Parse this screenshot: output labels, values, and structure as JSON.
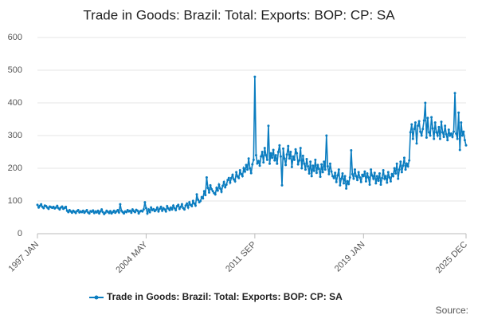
{
  "chart_data": {
    "type": "line",
    "title": "Trade in Goods: Brazil: Total: Exports: BOP: CP: SA",
    "source": "Source:",
    "categories": [
      "1997 JAN",
      null,
      null,
      null,
      null,
      null,
      null,
      null,
      null,
      null,
      null,
      null,
      null,
      null,
      null,
      null,
      null,
      null,
      null,
      null,
      null,
      null,
      null,
      null,
      null,
      null,
      null,
      null,
      null,
      null,
      null,
      null,
      null,
      null,
      null,
      null,
      null,
      null,
      null,
      null,
      null,
      null,
      null,
      null,
      null,
      null,
      null,
      null,
      null,
      null,
      null,
      null,
      null,
      null,
      null,
      null,
      null,
      null,
      null,
      null,
      null,
      null,
      null,
      null,
      null,
      null,
      null,
      null,
      null,
      null,
      null,
      null,
      null,
      null,
      null,
      null,
      null,
      null,
      null,
      null,
      null,
      null,
      null,
      null,
      null,
      null,
      null,
      null,
      "2004 MAY",
      null,
      null,
      null,
      null,
      null,
      null,
      null,
      null,
      null,
      null,
      null,
      null,
      null,
      null,
      null,
      null,
      null,
      null,
      null,
      null,
      null,
      null,
      null,
      null,
      null,
      null,
      null,
      null,
      null,
      null,
      null,
      null,
      null,
      null,
      null,
      null,
      null,
      null,
      null,
      null,
      null,
      null,
      null,
      null,
      null,
      null,
      null,
      null,
      null,
      null,
      null,
      null,
      null,
      null,
      null,
      null,
      null,
      null,
      null,
      null,
      null,
      null,
      null,
      null,
      null,
      null,
      null,
      null,
      null,
      null,
      null,
      null,
      null,
      null,
      null,
      null,
      null,
      null,
      null,
      null,
      null,
      null,
      null,
      null,
      null,
      null,
      null,
      "2011 SEP",
      null,
      null,
      null,
      null,
      null,
      null,
      null,
      null,
      null,
      null,
      null,
      null,
      null,
      null,
      null,
      null,
      null,
      null,
      null,
      null,
      null,
      null,
      null,
      null,
      null,
      null,
      null,
      null,
      null,
      null,
      null,
      null,
      null,
      null,
      null,
      null,
      null,
      null,
      null,
      null,
      null,
      null,
      null,
      null,
      null,
      null,
      null,
      null,
      null,
      null,
      null,
      null,
      null,
      null,
      null,
      null,
      null,
      null,
      null,
      null,
      null,
      null,
      null,
      null,
      null,
      null,
      null,
      null,
      null,
      null,
      null,
      null,
      null,
      null,
      null,
      null,
      null,
      null,
      null,
      null,
      null,
      null,
      null,
      null,
      null,
      null,
      null,
      "2019 JAN",
      null,
      null,
      null,
      null,
      null,
      null,
      null,
      null,
      null,
      null,
      null,
      null,
      null,
      null,
      null,
      null,
      null,
      null,
      null,
      null,
      null,
      null,
      null,
      null,
      null,
      null,
      null,
      null,
      null,
      null,
      null,
      null,
      null,
      null,
      null,
      null,
      null,
      null,
      null,
      null,
      null,
      null,
      null,
      null,
      null,
      null,
      null,
      null,
      null,
      null,
      null,
      null,
      null,
      null,
      null,
      null,
      null,
      null,
      null,
      null,
      null,
      null,
      null,
      null,
      null,
      null,
      null,
      null,
      null,
      null,
      null,
      null,
      null,
      null,
      null,
      null,
      null,
      null,
      null,
      null,
      null,
      null,
      "2025 DEC"
    ],
    "series": [
      {
        "name": "Trade in Goods: Brazil: Total: Exports: BOP: CP: SA",
        "color": "#0b7dc0",
        "values": [
          88,
          80,
          85,
          90,
          82,
          78,
          86,
          84,
          80,
          76,
          83,
          81,
          79,
          82,
          77,
          80,
          85,
          78,
          74,
          80,
          83,
          76,
          79,
          82,
          70,
          66,
          72,
          68,
          64,
          70,
          67,
          63,
          69,
          72,
          65,
          68,
          66,
          70,
          64,
          68,
          72,
          65,
          62,
          69,
          67,
          71,
          63,
          68,
          65,
          70,
          62,
          68,
          74,
          66,
          60,
          64,
          70,
          67,
          63,
          69,
          62,
          66,
          70,
          64,
          68,
          72,
          65,
          90,
          70,
          66,
          62,
          68,
          66,
          72,
          68,
          70,
          64,
          74,
          69,
          66,
          73,
          70,
          62,
          68,
          70,
          68,
          74,
          96,
          78,
          62,
          74,
          66,
          80,
          72,
          75,
          69,
          73,
          80,
          68,
          76,
          82,
          70,
          78,
          74,
          68,
          84,
          77,
          72,
          80,
          74,
          86,
          78,
          72,
          84,
          88,
          76,
          82,
          90,
          78,
          74,
          86,
          92,
          80,
          96,
          88,
          84,
          100,
          92,
          86,
          120,
          104,
          96,
          100,
          112,
          108,
          130,
          118,
          172,
          140,
          126,
          148,
          136,
          130,
          124,
          120,
          140,
          132,
          150,
          138,
          128,
          146,
          158,
          142,
          150,
          164,
          170,
          156,
          170,
          180,
          166,
          160,
          188,
          175,
          170,
          194,
          182,
          176,
          200,
          190,
          210,
          196,
          230,
          200,
          185,
          212,
          226,
          480,
          240,
          215,
          222,
          208,
          236,
          250,
          218,
          262,
          240,
          226,
          330,
          214,
          246,
          232,
          256,
          224,
          240,
          214,
          250,
          270,
          236,
          148,
          260,
          230,
          210,
          242,
          268,
          230,
          250,
          204,
          236,
          226,
          258,
          246,
          212,
          224,
          262,
          200,
          238,
          214,
          196,
          228,
          206,
          184,
          220,
          176,
          208,
          192,
          226,
          186,
          210,
          198,
          174,
          212,
          188,
          220,
          196,
          300,
          206,
          182,
          214,
          190,
          176,
          170,
          186,
          158,
          178,
          196,
          148,
          168,
          184,
          154,
          176,
          138,
          160,
          152,
          172,
          255,
          182,
          168,
          196,
          176,
          164,
          188,
          172,
          158,
          180,
          176,
          190,
          160,
          184,
          172,
          150,
          196,
          178,
          168,
          186,
          154,
          176,
          162,
          184,
          150,
          170,
          194,
          168,
          176,
          156,
          188,
          172,
          160,
          182,
          176,
          200,
          184,
          214,
          168,
          196,
          220,
          188,
          208,
          232,
          196,
          214,
          206,
          224,
          310,
          334,
          290,
          320,
          340,
          276,
          330,
          344,
          312,
          300,
          320,
          346,
          400,
          294,
          354,
          310,
          300,
          356,
          322,
          290,
          340,
          310,
          300,
          326,
          290,
          342,
          310,
          296,
          330,
          304,
          286,
          318,
          300,
          306,
          296,
          312,
          430,
          306,
          290,
          370,
          256,
          340,
          300,
          312,
          286,
          270
        ]
      }
    ],
    "ylim": [
      0,
      600
    ],
    "yticks": [
      0,
      100,
      200,
      300,
      400,
      500,
      600
    ],
    "grid": true,
    "legend": "bottom"
  }
}
